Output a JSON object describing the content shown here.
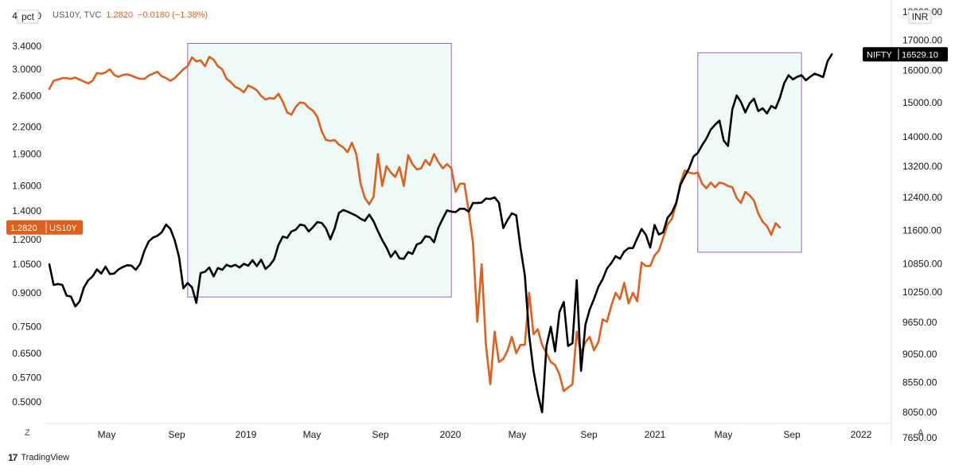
{
  "legend": {
    "symbol": "US10Y, TVC",
    "last": "1.2820",
    "change": "−0.0180 (−1.38%)",
    "color": "#e05f1a"
  },
  "buttons": {
    "zoom": "Z",
    "auto": "A"
  },
  "branding": {
    "logo": "17",
    "name": "TradingView"
  },
  "chart_data": {
    "type": "line",
    "x_tick_labels": [
      "May",
      "Sep",
      "2019",
      "May",
      "Sep",
      "2020",
      "May",
      "Sep",
      "2021",
      "May",
      "Sep",
      "2022"
    ],
    "left_axis": {
      "unit": "pct",
      "ticks": [
        "4.0000",
        "3.4000",
        "3.0000",
        "2.6000",
        "2.2000",
        "1.9000",
        "1.6000",
        "1.4000",
        "1.2000",
        "1.0500",
        "0.9000",
        "0.7500",
        "0.6500",
        "0.5700",
        "0.5000"
      ],
      "scale": "log"
    },
    "right_axis": {
      "unit": "INR",
      "ticks": [
        "18000.00",
        "17000.00",
        "16000.00",
        "15000.00",
        "14000.00",
        "13200.00",
        "12400.00",
        "11600.00",
        "10850.00",
        "10250.00",
        "9650.00",
        "9050.00",
        "8550.00",
        "8050.00",
        "7650.00"
      ],
      "scale": "log"
    },
    "series": [
      {
        "name": "US10Y",
        "axis": "left",
        "color": "#e05f1a",
        "last_label": "1.2820",
        "values": [
          2.7,
          2.82,
          2.84,
          2.86,
          2.86,
          2.85,
          2.87,
          2.84,
          2.81,
          2.78,
          2.82,
          2.94,
          2.93,
          2.95,
          3.0,
          2.91,
          2.88,
          2.91,
          2.92,
          2.9,
          2.87,
          2.85,
          2.85,
          2.9,
          2.93,
          2.96,
          2.89,
          2.86,
          2.82,
          2.86,
          2.93,
          3.0,
          3.05,
          3.2,
          3.13,
          3.15,
          3.05,
          3.21,
          3.16,
          3.05,
          3.0,
          2.85,
          2.8,
          2.73,
          2.7,
          2.65,
          2.75,
          2.72,
          2.68,
          2.6,
          2.55,
          2.57,
          2.56,
          2.63,
          2.52,
          2.38,
          2.35,
          2.45,
          2.51,
          2.5,
          2.44,
          2.4,
          2.32,
          2.15,
          2.05,
          2.04,
          2.05,
          2.0,
          1.97,
          1.92,
          2.02,
          1.9,
          1.62,
          1.5,
          1.45,
          1.51,
          1.9,
          1.6,
          1.78,
          1.72,
          1.68,
          1.77,
          1.6,
          1.89,
          1.8,
          1.75,
          1.76,
          1.84,
          1.79,
          1.9,
          1.82,
          1.76,
          1.8,
          1.76,
          1.55,
          1.62,
          1.62,
          1.4,
          1.18,
          0.77,
          1.05,
          0.68,
          0.55,
          0.73,
          0.62,
          0.63,
          0.66,
          0.71,
          0.65,
          0.68,
          0.68,
          0.9,
          0.72,
          0.74,
          0.68,
          0.65,
          0.62,
          0.61,
          0.58,
          0.53,
          0.54,
          0.55,
          0.73,
          0.65,
          0.69,
          0.71,
          0.66,
          0.69,
          0.78,
          0.77,
          0.84,
          0.9,
          0.87,
          0.95,
          0.85,
          0.9,
          0.86,
          1.06,
          1.04,
          1.04,
          1.1,
          1.13,
          1.21,
          1.3,
          1.34,
          1.45,
          1.63,
          1.74,
          1.72,
          1.71,
          1.72,
          1.62,
          1.58,
          1.63,
          1.59,
          1.63,
          1.62,
          1.6,
          1.59,
          1.5,
          1.46,
          1.55,
          1.52,
          1.48,
          1.38,
          1.32,
          1.29,
          1.23,
          1.31,
          1.28
        ]
      },
      {
        "name": "NIFTY",
        "axis": "right",
        "color": "#000000",
        "last_label": "16529.10",
        "values": [
          10840,
          10400,
          10420,
          10400,
          10180,
          10160,
          9960,
          10060,
          10350,
          10500,
          10580,
          10730,
          10640,
          10790,
          10630,
          10640,
          10730,
          10780,
          10820,
          10810,
          10720,
          10850,
          11140,
          11350,
          11440,
          11480,
          11560,
          11740,
          11640,
          11380,
          11000,
          10330,
          10440,
          10350,
          10030,
          10650,
          10680,
          10770,
          10580,
          10760,
          10720,
          10830,
          10790,
          10830,
          10770,
          10850,
          10810,
          10930,
          10800,
          10940,
          10740,
          10820,
          10950,
          11270,
          11460,
          11430,
          11580,
          11620,
          11740,
          11720,
          11580,
          11680,
          11800,
          11780,
          11650,
          11400,
          11650,
          12020,
          12090,
          12050,
          12000,
          11950,
          11880,
          11830,
          11980,
          11820,
          11590,
          11380,
          11210,
          11000,
          11130,
          10970,
          10960,
          11110,
          11070,
          11280,
          11320,
          11470,
          11450,
          11330,
          11670,
          11880,
          12080,
          12050,
          12040,
          12120,
          12120,
          12050,
          12260,
          12260,
          12270,
          12370,
          12360,
          12400,
          12270,
          11660,
          11850,
          12010,
          11960,
          11200,
          10600,
          9400,
          8750,
          8350,
          8050,
          9200,
          9560,
          9100,
          9850,
          10050,
          9200,
          9250,
          10500,
          8750,
          9600,
          9900,
          10110,
          10360,
          10520,
          10750,
          10870,
          11020,
          10960,
          11120,
          11200,
          11200,
          11420,
          11640,
          11500,
          11210,
          11730,
          11510,
          11560,
          11900,
          12030,
          12260,
          12720,
          12940,
          13150,
          13460,
          13560,
          13770,
          13960,
          14210,
          14350,
          14470,
          13900,
          13750,
          14800,
          15220,
          15020,
          14710,
          14980,
          15120,
          14750,
          14830,
          14680,
          14900,
          14830,
          15150,
          15600,
          15850,
          15720,
          15800,
          15850,
          15690,
          15800,
          15900,
          15850,
          15790,
          16300,
          16529
        ]
      }
    ],
    "highlight_boxes": [
      {
        "x_start": 32,
        "x_end": 93,
        "y_top": 3.45,
        "y_bottom": 0.88
      },
      {
        "x_start": 150,
        "x_end": 174,
        "y_top": 3.28,
        "y_bottom": 1.12
      }
    ],
    "grid": false,
    "legend_position": "top-left"
  }
}
